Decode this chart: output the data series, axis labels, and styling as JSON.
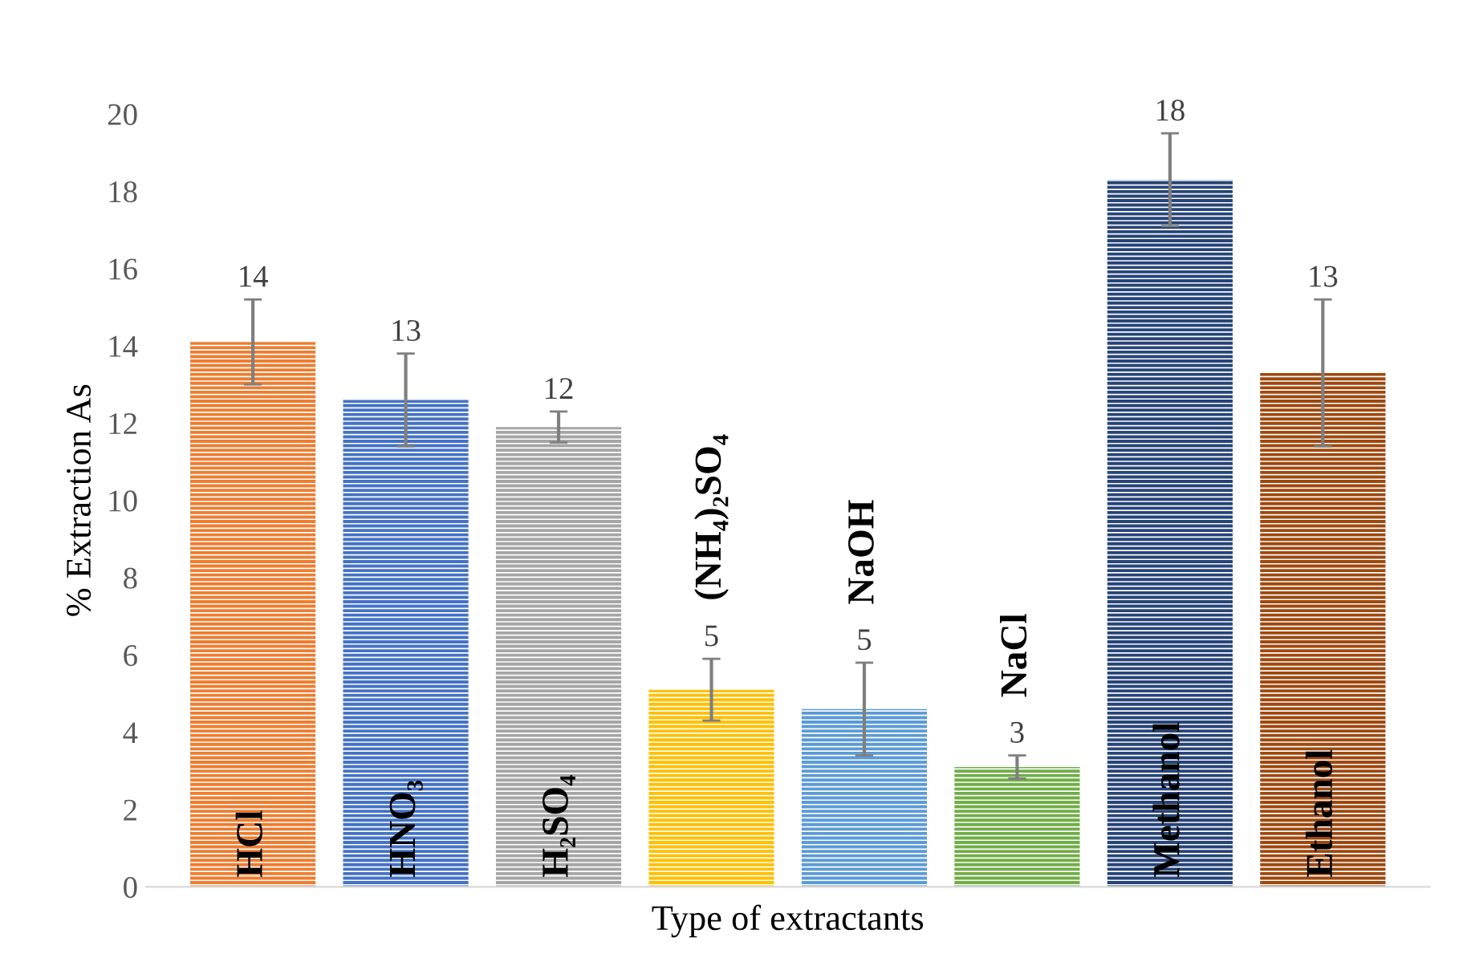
{
  "chart_data": {
    "type": "bar",
    "xlabel": "Type of extractants",
    "ylabel": "% Extraction As",
    "categories": [
      "HCl",
      "HNO₃",
      "H₂SO₄",
      "(NH₄)₂SO₄",
      "NaOH",
      "NaCl",
      "Methanol",
      "Ethanol"
    ],
    "values": [
      14.1,
      12.6,
      11.9,
      5.1,
      4.6,
      3.1,
      18.3,
      13.3
    ],
    "errors": [
      1.1,
      1.2,
      0.4,
      0.8,
      1.2,
      0.3,
      1.2,
      1.9
    ],
    "value_labels": [
      "14",
      "13",
      "12",
      "5",
      "5",
      "3",
      "18",
      "13"
    ],
    "colors": [
      "#ed7d31",
      "#4472c4",
      "#a5a5a5",
      "#ffc000",
      "#5b9bd5",
      "#70ad47",
      "#264478",
      "#9e480e"
    ],
    "ylim": [
      0,
      20
    ],
    "yticks": [
      0,
      2,
      4,
      6,
      8,
      10,
      12,
      14,
      16,
      18,
      20
    ],
    "grid": false,
    "legend": false
  }
}
